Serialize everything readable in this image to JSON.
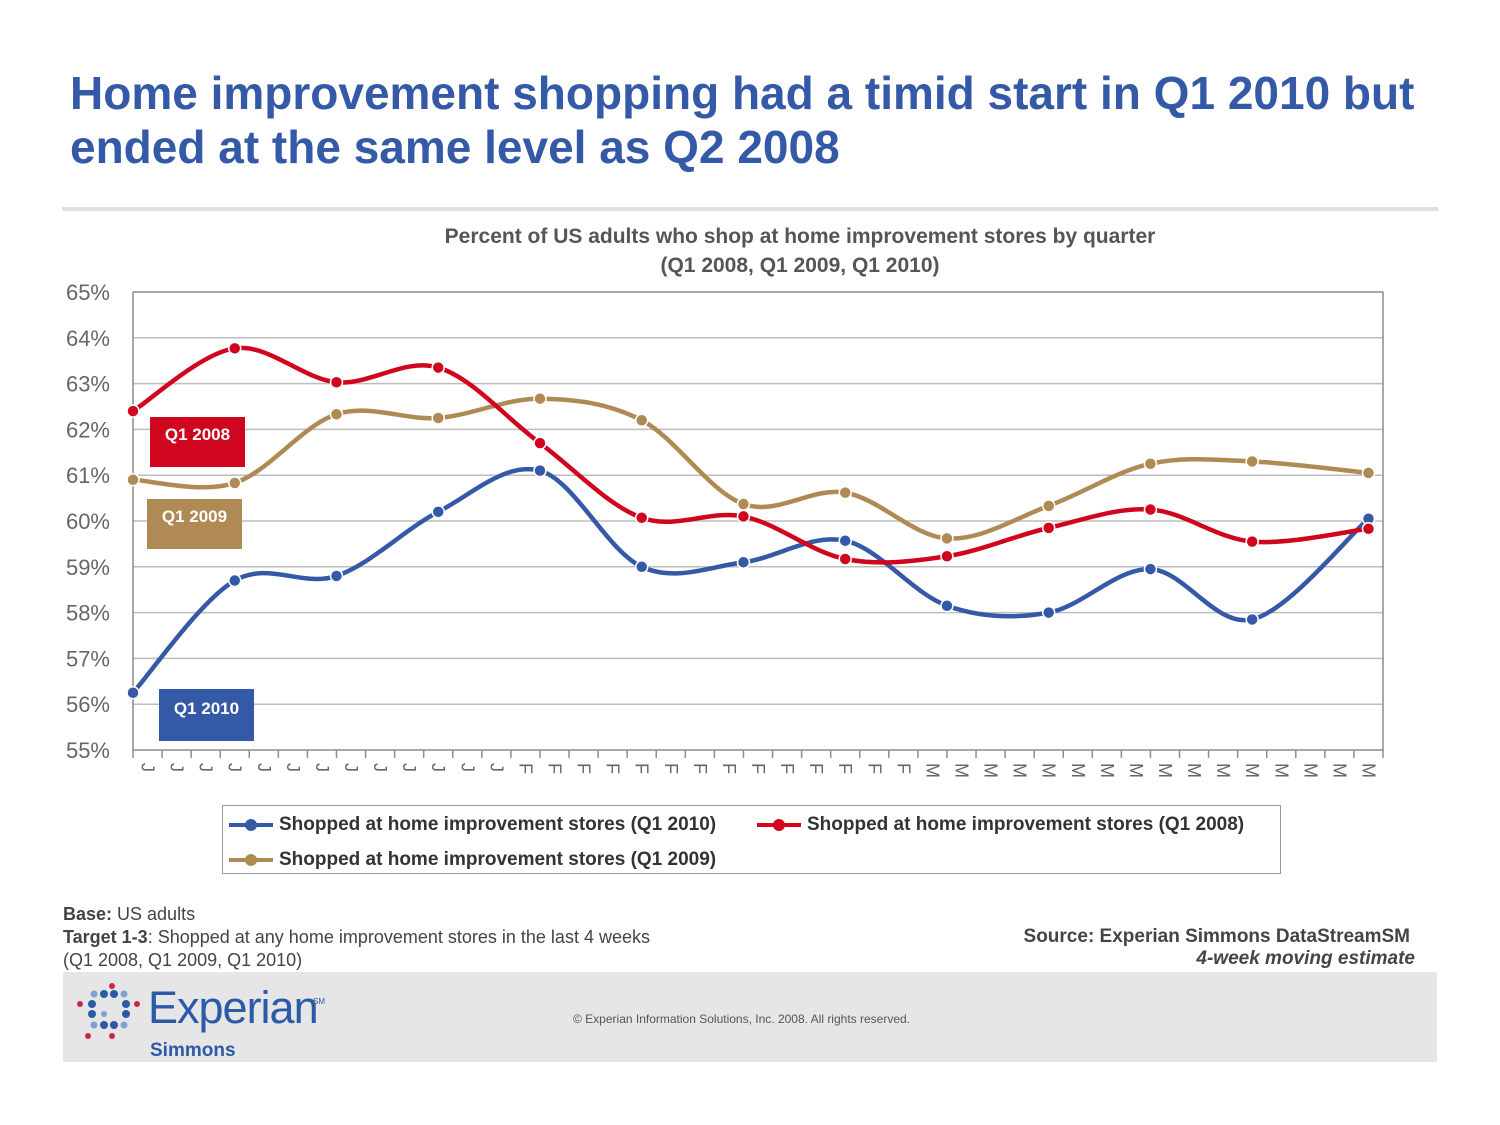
{
  "slide": {
    "title": "Home improvement shopping had a timid start in Q1 2010 but ended at the same level as Q2 2008"
  },
  "chart_data": {
    "type": "line",
    "title": "Percent of US adults who shop at home improvement stores by quarter",
    "subtitle": "(Q1 2008, Q1 2009, Q1 2010",
    "ylim": [
      55,
      65
    ],
    "ytick_labels": [
      "55%",
      "56%",
      "57%",
      "58%",
      "59%",
      "60%",
      "61%",
      "62%",
      "63%",
      "64%",
      "65%"
    ],
    "x_tick_labels": [
      "J",
      "J",
      "J",
      "J",
      "J",
      "J",
      "J",
      "J",
      "J",
      "J",
      "J",
      "J",
      "J",
      "F",
      "F",
      "F",
      "F",
      "F",
      "F",
      "F",
      "F",
      "F",
      "F",
      "F",
      "F",
      "F",
      "F",
      "M",
      "M",
      "M",
      "M",
      "M",
      "M",
      "M",
      "M",
      "M",
      "M",
      "M",
      "M",
      "M",
      "M",
      "M",
      "M"
    ],
    "marker_positions": [
      0,
      3.5,
      7,
      10.5,
      14,
      17.5,
      21,
      24.5,
      28,
      31.5,
      35,
      38.5,
      42.5
    ],
    "series": [
      {
        "name": "Shopped at home improvement stores (Q1 2010)",
        "short": "Q1 2010",
        "color": "#3459a6",
        "values": [
          56.25,
          58.7,
          58.8,
          60.2,
          61.1,
          59.0,
          59.1,
          59.57,
          58.15,
          58.0,
          58.95,
          57.85,
          60.05
        ]
      },
      {
        "name": "Shopped at home improvement stores (Q1 2008)",
        "short": "Q1 2008",
        "color": "#d0061f",
        "values": [
          62.4,
          63.77,
          63.03,
          63.35,
          61.7,
          60.07,
          60.1,
          59.17,
          59.23,
          59.85,
          60.25,
          59.55,
          59.83
        ]
      },
      {
        "name": "Shopped at home improvement stores (Q1 2009)",
        "short": "Q1 2009",
        "color": "#b08a54",
        "values": [
          60.9,
          60.83,
          62.33,
          62.25,
          62.67,
          62.2,
          60.37,
          60.62,
          59.62,
          60.33,
          61.25,
          61.3,
          61.05
        ]
      }
    ]
  },
  "notes": {
    "base_label": "Base:",
    "base_text": " US adults",
    "target_label": "Target 1-3",
    "target_text": ": Shopped at any home improvement stores in the last 4 weeks",
    "target_sub": "(Q1 2008, Q1 2009, Q1 2010)"
  },
  "source": {
    "text": "Source:  Experian Simmons DataStreamSM",
    "note": "4-week moving estimate"
  },
  "footer": {
    "copyright": "© Experian Information Solutions, Inc. 2008.  All rights reserved.",
    "logo_word": "Experian",
    "logo_sm": "SM",
    "logo_sub": "Simmons"
  }
}
